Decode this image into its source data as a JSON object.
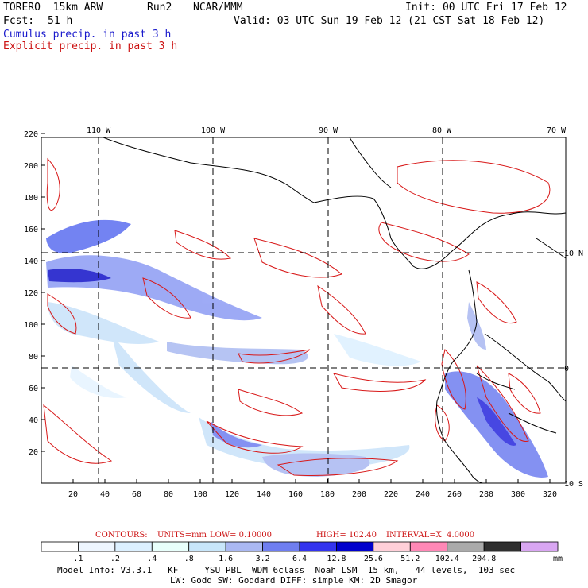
{
  "header": {
    "model": "TORERO  15km ARW",
    "run": "Run2",
    "org": "NCAR/MMM",
    "init": "Init: 00 UTC Fri 17 Feb 12",
    "fcst_label": "Fcst:",
    "fcst_value": "51 h",
    "valid": "Valid: 03 UTC Sun 19 Feb 12 (21 CST Sat 18 Feb 12)",
    "cumulus": "Cumulus precip. in past 3 h",
    "explicit": "Explicit precip. in past 3 h"
  },
  "axes": {
    "lon_labels": [
      "110 W",
      "100 W",
      "90 W",
      "80 W",
      "70 W"
    ],
    "lat_labels": [
      "10 N",
      "0",
      "10 S"
    ],
    "x_ticks": [
      "20",
      "40",
      "60",
      "80",
      "100",
      "120",
      "140",
      "160",
      "180",
      "200",
      "220",
      "240",
      "260",
      "280",
      "300",
      "320"
    ],
    "y_ticks": [
      "220",
      "200",
      "180",
      "160",
      "140",
      "120",
      "100",
      "80",
      "60",
      "40",
      "20"
    ]
  },
  "contours": {
    "label": "CONTOURS:",
    "units": "UNITS=mm",
    "low": "LOW= 0.10000",
    "high": "HIGH= 102.40",
    "interval": "INTERVAL=X  4.0000"
  },
  "colorbar": {
    "labels": [
      ".1",
      ".2",
      ".4",
      ".8",
      "1.6",
      "3.2",
      "6.4",
      "12.8",
      "25.6",
      "51.2",
      "102.4",
      "204.8"
    ],
    "colors": [
      "#ffffff",
      "#eef6ff",
      "#dcf0ff",
      "#e8fffb",
      "#c8e6fa",
      "#aab8f2",
      "#6f7ef0",
      "#3434ee",
      "#0000cc",
      "#ffcfd8",
      "#ff88b6",
      "#aaaaaa",
      "#2f2f2f",
      "#d9a6f2"
    ],
    "unit": "mm"
  },
  "footer": {
    "line1": "Model Info: V3.3.1   KF     YSU PBL  WDM 6class  Noah LSM  15 km,   44 levels,  103 sec",
    "line2": "LW: Godd SW: Goddard DIFF: simple KM: 2D Smagor"
  }
}
